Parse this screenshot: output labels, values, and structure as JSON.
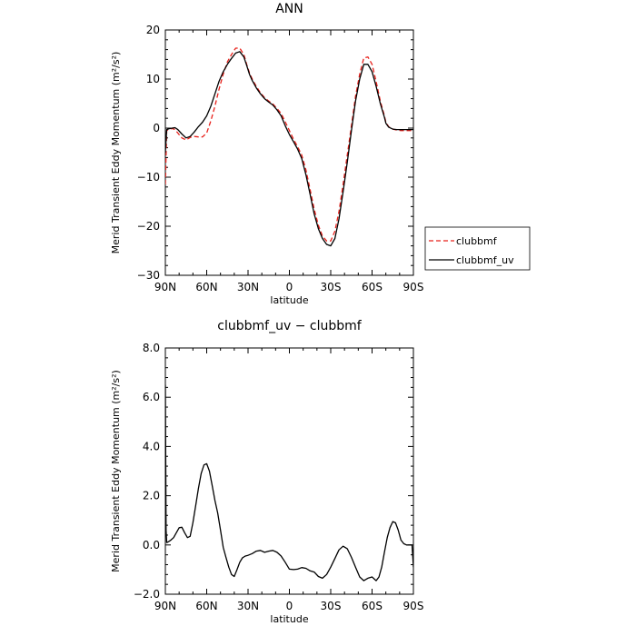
{
  "chart_data": [
    {
      "type": "line",
      "title": "ANN",
      "xlabel": "latitude",
      "ylabel": "Merid Transient Eddy Momentum (m²/s²)",
      "xlim": [
        90,
        -90
      ],
      "ylim": [
        -30,
        20
      ],
      "x_ticks": [
        90,
        60,
        30,
        0,
        -30,
        -60,
        -90
      ],
      "x_tick_labels": [
        "90N",
        "60N",
        "30N",
        "0",
        "30S",
        "60S",
        "90S"
      ],
      "y_ticks": [
        -30,
        -20,
        -10,
        0,
        10,
        20
      ],
      "y_tick_labels": [
        "−30",
        "−20",
        "−10",
        "0",
        "10",
        "20"
      ],
      "grid": false,
      "legend_position": "right",
      "series": [
        {
          "name": "clubbmf",
          "color": "#e8211b",
          "dash": "dashed",
          "x": [
            90,
            89,
            87,
            85,
            83,
            81,
            78,
            75,
            72,
            69,
            66,
            63,
            60,
            57,
            54,
            51,
            48,
            45,
            42,
            39,
            36,
            33,
            31,
            29,
            27,
            24,
            21,
            18,
            15,
            12,
            9,
            6,
            3,
            0,
            -3,
            -6,
            -9,
            -12,
            -15,
            -18,
            -21,
            -24,
            -27,
            -30,
            -33,
            -36,
            -39,
            -42,
            -45,
            -48,
            -51,
            -54,
            -57,
            -60,
            -63,
            -66,
            -69,
            -70,
            -72,
            -75,
            -78,
            -81,
            -84,
            -87,
            -90
          ],
          "y": [
            -11.5,
            -0.5,
            -0.2,
            -0.1,
            -0.3,
            -1.0,
            -2.0,
            -2.4,
            -1.9,
            -1.7,
            -1.8,
            -1.8,
            -1.0,
            1.5,
            4.5,
            8.0,
            11.0,
            13.5,
            15.0,
            16.3,
            16.3,
            15.0,
            13.0,
            11.3,
            10.0,
            8.5,
            7.2,
            6.2,
            5.5,
            4.9,
            4.0,
            3.0,
            1.3,
            -0.5,
            -2.3,
            -3.8,
            -5.5,
            -8.5,
            -12.5,
            -16.5,
            -19.8,
            -22.0,
            -23.0,
            -23.0,
            -21.0,
            -17.0,
            -11.5,
            -5.5,
            0.5,
            6.5,
            11.0,
            14.3,
            14.5,
            13.0,
            9.5,
            5.5,
            2.5,
            1.2,
            0.3,
            -0.2,
            -0.4,
            -0.5,
            -0.5,
            -0.5,
            -0.5
          ]
        },
        {
          "name": "clubbmf_uv",
          "color": "#000000",
          "dash": "solid",
          "x": [
            90,
            89,
            87,
            85,
            83,
            81,
            78,
            75,
            72,
            69,
            66,
            63,
            60,
            57,
            54,
            51,
            48,
            45,
            42,
            39,
            36,
            33,
            31,
            29,
            27,
            24,
            21,
            18,
            15,
            12,
            9,
            6,
            3,
            0,
            -3,
            -6,
            -9,
            -12,
            -15,
            -18,
            -21,
            -24,
            -27,
            -30,
            -33,
            -36,
            -39,
            -42,
            -45,
            -48,
            -51,
            -54,
            -57,
            -60,
            -63,
            -66,
            -69,
            -70,
            -72,
            -75,
            -78,
            -81,
            -84,
            -87,
            -90
          ],
          "y": [
            -5.0,
            -0.3,
            -0.1,
            0.0,
            0.1,
            -0.3,
            -1.2,
            -2.0,
            -1.7,
            -0.8,
            0.3,
            1.2,
            2.5,
            4.5,
            7.0,
            9.6,
            11.5,
            13.0,
            14.2,
            15.3,
            15.6,
            14.5,
            12.8,
            11.0,
            9.7,
            8.2,
            7.0,
            6.0,
            5.3,
            4.7,
            3.7,
            2.5,
            0.5,
            -1.3,
            -2.8,
            -4.3,
            -6.2,
            -9.5,
            -13.5,
            -17.5,
            -20.5,
            -22.5,
            -23.7,
            -24.0,
            -22.5,
            -18.5,
            -13.0,
            -7.0,
            -0.5,
            5.5,
            10.0,
            13.0,
            13.0,
            11.5,
            8.5,
            5.0,
            2.2,
            1.0,
            0.2,
            -0.2,
            -0.3,
            -0.3,
            -0.3,
            -0.3,
            -0.3
          ]
        }
      ]
    },
    {
      "type": "line",
      "title": "clubbmf_uv − clubbmf",
      "xlabel": "latitude",
      "ylabel": "Merid Transient Eddy Momentum (m²/s²)",
      "xlim": [
        90,
        -90
      ],
      "ylim": [
        -2.0,
        8.0
      ],
      "x_ticks": [
        90,
        60,
        30,
        0,
        -30,
        -60,
        -90
      ],
      "x_tick_labels": [
        "90N",
        "60N",
        "30N",
        "0",
        "30S",
        "60S",
        "90S"
      ],
      "y_ticks": [
        -2,
        0,
        2,
        4,
        6,
        8
      ],
      "y_tick_labels": [
        "−2.0",
        "0.0",
        "2.0",
        "4.0",
        "6.0",
        "8.0"
      ],
      "grid": false,
      "series": [
        {
          "color": "#000000",
          "dash": "solid",
          "x": [
            90,
            89.5,
            89,
            88,
            86,
            84,
            82,
            80,
            78,
            76,
            74,
            72,
            70,
            68,
            66,
            64,
            62,
            60,
            58,
            56,
            54,
            52,
            50,
            48,
            46,
            44,
            42,
            40,
            38,
            36,
            34,
            32,
            30,
            27,
            24,
            21,
            18,
            15,
            12,
            9,
            6,
            3,
            0,
            -3,
            -6,
            -9,
            -12,
            -15,
            -18,
            -21,
            -24,
            -27,
            -30,
            -33,
            -36,
            -39,
            -42,
            -45,
            -48,
            -51,
            -54,
            -57,
            -60,
            -63,
            -65,
            -67,
            -69,
            -71,
            -73,
            -75,
            -77,
            -79,
            -81,
            -83,
            -85,
            -87,
            -89,
            -90
          ],
          "y": [
            6.5,
            0.6,
            0.1,
            0.12,
            0.2,
            0.3,
            0.5,
            0.7,
            0.72,
            0.5,
            0.3,
            0.35,
            0.9,
            1.6,
            2.3,
            2.9,
            3.25,
            3.3,
            3.0,
            2.4,
            1.8,
            1.3,
            0.6,
            -0.1,
            -0.5,
            -0.9,
            -1.2,
            -1.28,
            -1.0,
            -0.7,
            -0.52,
            -0.45,
            -0.42,
            -0.35,
            -0.25,
            -0.22,
            -0.3,
            -0.25,
            -0.22,
            -0.3,
            -0.45,
            -0.7,
            -0.98,
            -1.0,
            -0.98,
            -0.92,
            -0.95,
            -1.05,
            -1.1,
            -1.28,
            -1.35,
            -1.2,
            -0.9,
            -0.55,
            -0.2,
            -0.05,
            -0.15,
            -0.5,
            -0.9,
            -1.3,
            -1.45,
            -1.35,
            -1.3,
            -1.45,
            -1.3,
            -0.9,
            -0.3,
            0.3,
            0.7,
            0.95,
            0.9,
            0.6,
            0.2,
            0.05,
            0.0,
            0.0,
            0.0,
            -0.9
          ]
        }
      ]
    }
  ]
}
